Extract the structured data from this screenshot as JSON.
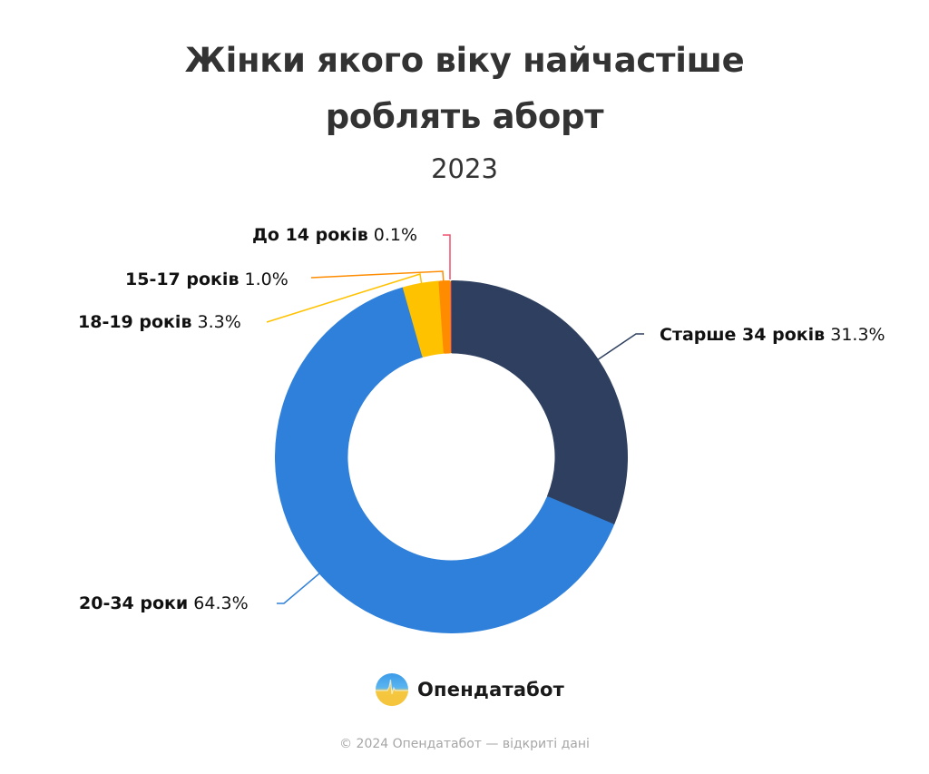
{
  "header": {
    "title_line1": "Жінки якого віку найчастіше",
    "title_line2": "роблять аборт",
    "subtitle": "2023"
  },
  "chart_data": {
    "type": "pie",
    "variant": "donut",
    "title": "Жінки якого віку найчастіше роблять аборт",
    "subtitle": "2023",
    "start_angle_deg": 0,
    "direction": "clockwise",
    "categories": [
      "Старше 34 років",
      "20-34 роки",
      "18-19 років",
      "15-17 років",
      "До 14 років"
    ],
    "values": [
      31.3,
      64.3,
      3.3,
      1.0,
      0.1
    ],
    "unit": "%",
    "colors": [
      "#2E3F5F",
      "#2F80DA",
      "#FFC200",
      "#FF8C00",
      "#F0506E"
    ],
    "slices": [
      {
        "label": "Старше 34 років",
        "value": 31.3,
        "display": "31.3%",
        "color": "#2E3F5F"
      },
      {
        "label": "20-34 роки",
        "value": 64.3,
        "display": "64.3%",
        "color": "#2F80DA"
      },
      {
        "label": "18-19 років",
        "value": 3.3,
        "display": "3.3%",
        "color": "#FFC200"
      },
      {
        "label": "15-17 років",
        "value": 1.0,
        "display": "1.0%",
        "color": "#FF8C00"
      },
      {
        "label": "До 14 років",
        "value": 0.1,
        "display": "0.1%",
        "color": "#F0506E"
      }
    ],
    "legend": "none (direct labels with leader lines)"
  },
  "labels": {
    "older34": {
      "name": "Старше 34 років",
      "pct": "31.3%"
    },
    "age20_34": {
      "name": "20-34 роки",
      "pct": "64.3%"
    },
    "age18_19": {
      "name": "18-19 років",
      "pct": "3.3%"
    },
    "age15_17": {
      "name": "15-17 років",
      "pct": "1.0%"
    },
    "under14": {
      "name": "До 14 років",
      "pct": "0.1%"
    }
  },
  "brand": {
    "logo_icon": "opendatabot-pulse-logo-icon",
    "name": "Опендатабот"
  },
  "footer": {
    "text": "© 2024 Опендатабот — відкриті дані"
  }
}
